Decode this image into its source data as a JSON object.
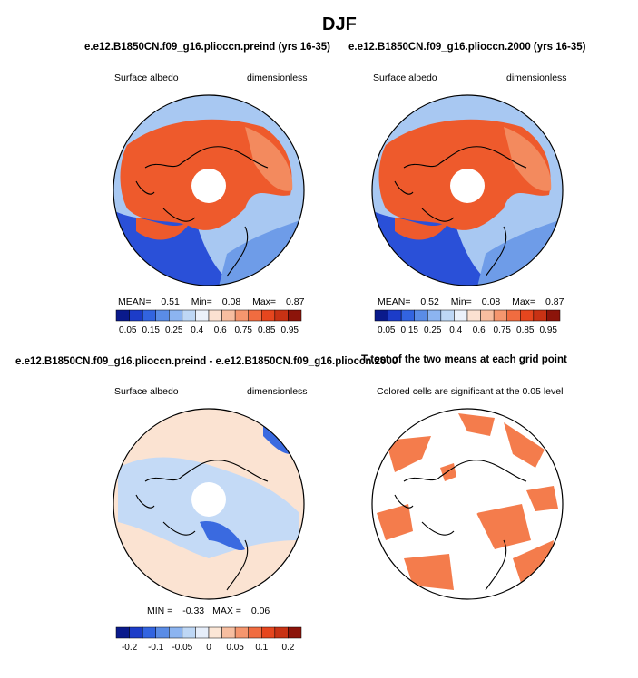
{
  "figure": {
    "title": "DJF"
  },
  "panels": {
    "p1": {
      "title": "e.e12.B1850CN.f09_g16.plioccn.preind (yrs 16-35)",
      "left_label": "Surface albedo",
      "right_label": "dimensionless",
      "stats": {
        "mean_label": "MEAN=",
        "mean": "0.51",
        "min_label": "Min=",
        "min": "0.08",
        "max_label": "Max=",
        "max": "0.87"
      }
    },
    "p2": {
      "title": "e.e12.B1850CN.f09_g16.plioccn.2000 (yrs 16-35)",
      "left_label": "Surface albedo",
      "right_label": "dimensionless",
      "stats": {
        "mean_label": "MEAN=",
        "mean": "0.52",
        "min_label": "Min=",
        "min": "0.08",
        "max_label": "Max=",
        "max": "0.87"
      }
    },
    "p3": {
      "title": "e.e12.B1850CN.f09_g16.plioccn.preind - e.e12.B1850CN.f09_g16.plioccn.2000",
      "left_label": "Surface albedo",
      "right_label": "dimensionless",
      "stats": {
        "min_label": "MIN =",
        "min": "-0.33",
        "max_label": "MAX =",
        "max": "0.06"
      }
    },
    "p4": {
      "title": "T-test of the two means at each grid point",
      "subtitle": "Colored cells are significant at the 0.05 level"
    }
  },
  "colorbars": {
    "albedo": {
      "colors": [
        "#0a1a8c",
        "#1c3cc8",
        "#3264e0",
        "#5a8ce6",
        "#8cb4f0",
        "#bed7f5",
        "#ebf1fa",
        "#fbe1d1",
        "#f7bea0",
        "#f5966e",
        "#f06c40",
        "#e6461e",
        "#c83214",
        "#8c140a"
      ],
      "labels": [
        "0.05",
        "0.15",
        "0.25",
        "0.4",
        "0.6",
        "0.75",
        "0.85",
        "0.95"
      ]
    },
    "diff": {
      "colors": [
        "#0a1a8c",
        "#1c3cc8",
        "#3264e0",
        "#5a8ce6",
        "#8cb4f0",
        "#bed7f5",
        "#e6eefa",
        "#fbe6d6",
        "#f7bea0",
        "#f5966e",
        "#f06c40",
        "#e6461e",
        "#c83214",
        "#8c140a"
      ],
      "labels": [
        "-0.2",
        "-0.1",
        "-0.05",
        "0",
        "0.05",
        "0.1",
        "0.2"
      ]
    }
  },
  "map_colors": {
    "ocean_low": "#2a50d8",
    "ocean_mid": "#6e9ce8",
    "ocean_light": "#a8c8f2",
    "land_high": "#ee5a2c",
    "land_mid": "#f38a5e",
    "diff_neutral": "#fbe3d2",
    "diff_neg": "#c4daf6",
    "diff_neg_strong": "#3a6ae0",
    "ttest_fill": "#f47c4c",
    "pole_hole": "#ffffff",
    "coast": "#000000"
  }
}
